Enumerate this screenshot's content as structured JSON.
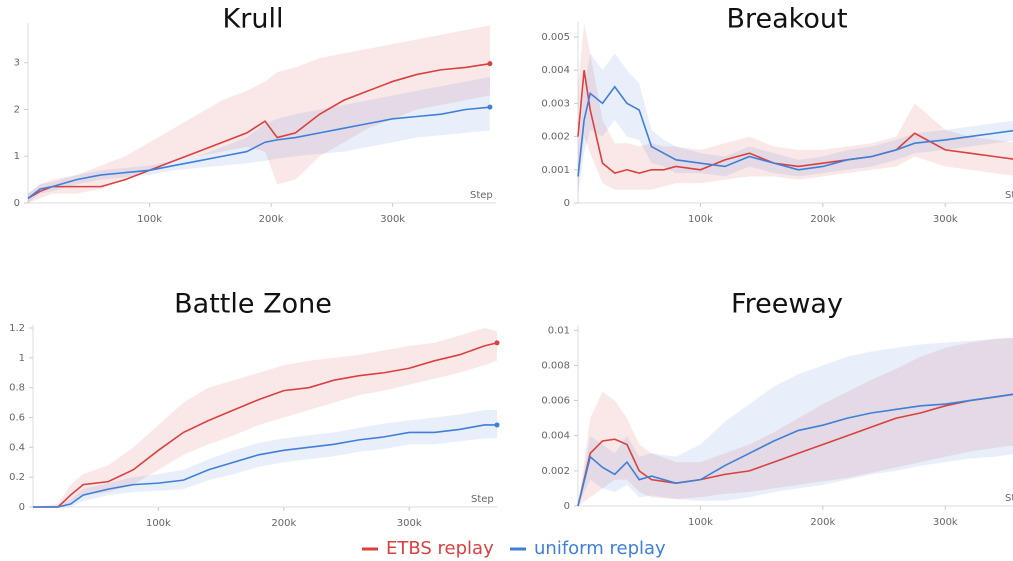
{
  "chart_data": [
    {
      "type": "line",
      "title": "Krull",
      "xlabel": "Step",
      "x": [
        0,
        10000,
        20000,
        40000,
        60000,
        80000,
        100000,
        120000,
        140000,
        160000,
        180000,
        195000,
        205000,
        220000,
        240000,
        260000,
        280000,
        300000,
        320000,
        340000,
        360000,
        380000
      ],
      "xlim": [
        0,
        385000
      ],
      "xticks": [
        {
          "value": 100000,
          "label": "100k"
        },
        {
          "value": 200000,
          "label": "200k"
        },
        {
          "value": 300000,
          "label": "300k"
        }
      ],
      "ylim": [
        0,
        3.85
      ],
      "yticks": [
        0,
        1,
        2,
        3
      ],
      "series": [
        {
          "name": "ETBS replay",
          "color": "#d9413f",
          "values": [
            0.1,
            0.25,
            0.35,
            0.35,
            0.35,
            0.5,
            0.7,
            0.9,
            1.1,
            1.3,
            1.5,
            1.75,
            1.4,
            1.5,
            1.9,
            2.2,
            2.4,
            2.6,
            2.75,
            2.85,
            2.9,
            2.98
          ],
          "upper": [
            0.2,
            0.4,
            0.5,
            0.6,
            0.8,
            1.0,
            1.3,
            1.6,
            1.9,
            2.2,
            2.4,
            2.6,
            2.8,
            2.9,
            3.1,
            3.2,
            3.3,
            3.4,
            3.5,
            3.6,
            3.7,
            3.8
          ],
          "lower": [
            0,
            0.1,
            0.2,
            0.2,
            0.3,
            0.5,
            0.7,
            0.9,
            1.0,
            1.1,
            1.2,
            1.1,
            0.4,
            0.5,
            1.0,
            1.3,
            1.6,
            1.8,
            2.0,
            2.1,
            2.2,
            2.3
          ]
        },
        {
          "name": "uniform replay",
          "color": "#3f7fd9",
          "values": [
            0.1,
            0.3,
            0.35,
            0.5,
            0.6,
            0.65,
            0.7,
            0.8,
            0.9,
            1.0,
            1.1,
            1.3,
            1.35,
            1.4,
            1.5,
            1.6,
            1.7,
            1.8,
            1.85,
            1.9,
            2.0,
            2.05
          ],
          "upper": [
            0.2,
            0.4,
            0.45,
            0.6,
            0.7,
            0.75,
            0.8,
            0.9,
            1.0,
            1.2,
            1.4,
            1.7,
            1.8,
            1.9,
            2.0,
            2.1,
            2.2,
            2.3,
            2.4,
            2.5,
            2.6,
            2.7
          ],
          "lower": [
            0,
            0.2,
            0.25,
            0.4,
            0.5,
            0.55,
            0.6,
            0.7,
            0.75,
            0.8,
            0.85,
            0.9,
            0.95,
            1.0,
            1.05,
            1.1,
            1.2,
            1.3,
            1.4,
            1.45,
            1.5,
            1.55
          ]
        }
      ]
    },
    {
      "type": "line",
      "title": "Breakout",
      "xlabel": "Step",
      "x": [
        0,
        5000,
        10000,
        20000,
        30000,
        40000,
        50000,
        60000,
        70000,
        80000,
        100000,
        120000,
        140000,
        160000,
        180000,
        200000,
        220000,
        240000,
        260000,
        275000,
        300000,
        320000,
        340000,
        360000,
        370000
      ],
      "xlim": [
        0,
        370000
      ],
      "xticks": [
        {
          "value": 100000,
          "label": "100k"
        },
        {
          "value": 200000,
          "label": "200k"
        },
        {
          "value": 300000,
          "label": "300k"
        }
      ],
      "ylim": [
        0,
        0.00545
      ],
      "yticks": [
        0,
        0.001,
        0.002,
        0.003,
        0.004,
        0.005
      ],
      "series": [
        {
          "name": "ETBS replay",
          "color": "#d9413f",
          "values": [
            0.002,
            0.004,
            0.0028,
            0.0012,
            0.0009,
            0.001,
            0.0009,
            0.001,
            0.001,
            0.0011,
            0.001,
            0.0013,
            0.0015,
            0.0012,
            0.0011,
            0.0012,
            0.0013,
            0.0014,
            0.0016,
            0.0021,
            0.0016,
            0.0015,
            0.0014,
            0.0013,
            0.0013
          ],
          "upper": [
            0.0035,
            0.0054,
            0.0045,
            0.0025,
            0.0018,
            0.0018,
            0.0017,
            0.0018,
            0.0017,
            0.0017,
            0.0016,
            0.0018,
            0.002,
            0.0017,
            0.0016,
            0.0016,
            0.0017,
            0.0018,
            0.002,
            0.003,
            0.0022,
            0.002,
            0.0019,
            0.0018,
            0.0018
          ],
          "lower": [
            0.0005,
            0.002,
            0.0015,
            0.0006,
            0.0004,
            0.0004,
            0.0004,
            0.0004,
            0.0005,
            0.0006,
            0.0006,
            0.0007,
            0.0008,
            0.0008,
            0.0007,
            0.0008,
            0.0009,
            0.001,
            0.0011,
            0.0014,
            0.0011,
            0.001,
            0.0009,
            0.0008,
            0.0008
          ]
        },
        {
          "name": "uniform replay",
          "color": "#3f7fd9",
          "values": [
            0.0008,
            0.0025,
            0.0033,
            0.003,
            0.0035,
            0.003,
            0.0028,
            0.0017,
            0.0015,
            0.0013,
            0.0012,
            0.0011,
            0.0014,
            0.0012,
            0.001,
            0.0011,
            0.0013,
            0.0014,
            0.0016,
            0.0018,
            0.0019,
            0.002,
            0.0021,
            0.0022,
            0.0023
          ],
          "upper": [
            0.0015,
            0.0035,
            0.0045,
            0.004,
            0.0045,
            0.004,
            0.0036,
            0.0022,
            0.0019,
            0.0017,
            0.0015,
            0.0014,
            0.0017,
            0.0015,
            0.0013,
            0.0014,
            0.0016,
            0.0017,
            0.0019,
            0.0021,
            0.0022,
            0.0023,
            0.0024,
            0.0025,
            0.0026
          ],
          "lower": [
            0.0002,
            0.0015,
            0.0022,
            0.002,
            0.0025,
            0.002,
            0.0019,
            0.0012,
            0.0011,
            0.0009,
            0.0009,
            0.0008,
            0.0011,
            0.0009,
            0.0008,
            0.0009,
            0.001,
            0.0011,
            0.0013,
            0.0015,
            0.0016,
            0.0017,
            0.0018,
            0.0019,
            0.002
          ]
        }
      ]
    },
    {
      "type": "line",
      "title": "Battle Zone",
      "xlabel": "Step",
      "x": [
        0,
        20000,
        30000,
        40000,
        60000,
        80000,
        100000,
        120000,
        140000,
        160000,
        180000,
        200000,
        220000,
        240000,
        260000,
        280000,
        300000,
        320000,
        340000,
        360000,
        370000
      ],
      "xlim": [
        0,
        370000
      ],
      "xticks": [
        {
          "value": 100000,
          "label": "100k"
        },
        {
          "value": 200000,
          "label": "200k"
        },
        {
          "value": 300000,
          "label": "300k"
        }
      ],
      "ylim": [
        0,
        1.22
      ],
      "yticks": [
        0,
        0.2,
        0.4,
        0.6,
        0.8,
        1,
        1.2
      ],
      "series": [
        {
          "name": "ETBS replay",
          "color": "#d9413f",
          "values": [
            0,
            0,
            0.08,
            0.15,
            0.17,
            0.25,
            0.38,
            0.5,
            0.58,
            0.65,
            0.72,
            0.78,
            0.8,
            0.85,
            0.88,
            0.9,
            0.93,
            0.98,
            1.02,
            1.08,
            1.1
          ],
          "upper": [
            0,
            0.02,
            0.15,
            0.22,
            0.28,
            0.4,
            0.55,
            0.7,
            0.8,
            0.85,
            0.9,
            0.95,
            0.98,
            1.0,
            1.02,
            1.05,
            1.08,
            1.1,
            1.15,
            1.2,
            1.18
          ],
          "lower": [
            0,
            0,
            0.03,
            0.08,
            0.1,
            0.15,
            0.25,
            0.35,
            0.42,
            0.48,
            0.55,
            0.6,
            0.65,
            0.7,
            0.75,
            0.78,
            0.82,
            0.86,
            0.9,
            0.95,
            0.98
          ]
        },
        {
          "name": "uniform replay",
          "color": "#3f7fd9",
          "values": [
            0,
            0,
            0.02,
            0.08,
            0.12,
            0.15,
            0.16,
            0.18,
            0.25,
            0.3,
            0.35,
            0.38,
            0.4,
            0.42,
            0.45,
            0.47,
            0.5,
            0.5,
            0.52,
            0.55,
            0.55
          ],
          "upper": [
            0,
            0.01,
            0.05,
            0.12,
            0.16,
            0.2,
            0.22,
            0.25,
            0.32,
            0.38,
            0.43,
            0.46,
            0.48,
            0.5,
            0.53,
            0.56,
            0.58,
            0.6,
            0.62,
            0.65,
            0.65
          ],
          "lower": [
            0,
            0,
            0,
            0.04,
            0.08,
            0.1,
            0.11,
            0.12,
            0.18,
            0.22,
            0.27,
            0.3,
            0.32,
            0.34,
            0.37,
            0.39,
            0.42,
            0.42,
            0.44,
            0.46,
            0.46
          ]
        }
      ]
    },
    {
      "type": "line",
      "title": "Freeway",
      "xlabel": "Step",
      "x": [
        0,
        10000,
        20000,
        30000,
        40000,
        50000,
        60000,
        80000,
        100000,
        120000,
        140000,
        160000,
        180000,
        200000,
        220000,
        240000,
        260000,
        280000,
        300000,
        320000,
        340000,
        360000,
        370000
      ],
      "xlim": [
        0,
        370000
      ],
      "xticks": [
        {
          "value": 100000,
          "label": "100k"
        },
        {
          "value": 200000,
          "label": "200k"
        },
        {
          "value": 300000,
          "label": "300k"
        }
      ],
      "ylim": [
        0,
        0.0103
      ],
      "yticks": [
        0,
        0.002,
        0.004,
        0.006,
        0.008,
        0.01
      ],
      "series": [
        {
          "name": "ETBS replay",
          "color": "#d9413f",
          "values": [
            0,
            0.003,
            0.0037,
            0.0038,
            0.0035,
            0.002,
            0.0015,
            0.0013,
            0.0015,
            0.0018,
            0.002,
            0.0025,
            0.003,
            0.0035,
            0.004,
            0.0045,
            0.005,
            0.0053,
            0.0057,
            0.006,
            0.0062,
            0.0064,
            0.0066
          ],
          "upper": [
            0,
            0.005,
            0.0065,
            0.006,
            0.005,
            0.0035,
            0.003,
            0.0025,
            0.0025,
            0.003,
            0.0035,
            0.0042,
            0.005,
            0.0058,
            0.0065,
            0.0072,
            0.0078,
            0.0085,
            0.009,
            0.0093,
            0.0095,
            0.0096,
            0.0097
          ],
          "lower": [
            0,
            0.0005,
            0.001,
            0.0015,
            0.0015,
            0.0008,
            0.0005,
            0.0004,
            0.0005,
            0.0007,
            0.0008,
            0.001,
            0.0012,
            0.0014,
            0.0016,
            0.0019,
            0.0022,
            0.0025,
            0.0028,
            0.0031,
            0.0033,
            0.0035,
            0.0037
          ]
        },
        {
          "name": "uniform replay",
          "color": "#3f7fd9",
          "values": [
            0,
            0.0028,
            0.0022,
            0.0018,
            0.0025,
            0.0015,
            0.0017,
            0.0013,
            0.0015,
            0.0023,
            0.003,
            0.0037,
            0.0043,
            0.0046,
            0.005,
            0.0053,
            0.0055,
            0.0057,
            0.0058,
            0.006,
            0.0062,
            0.0064,
            0.0067
          ],
          "upper": [
            0,
            0.004,
            0.0035,
            0.003,
            0.004,
            0.0028,
            0.003,
            0.0028,
            0.0035,
            0.0048,
            0.0058,
            0.0068,
            0.0075,
            0.008,
            0.0085,
            0.0088,
            0.009,
            0.0092,
            0.0093,
            0.0094,
            0.0095,
            0.0096,
            0.0097
          ],
          "lower": [
            0,
            0.0015,
            0.001,
            0.0008,
            0.0012,
            0.0005,
            0.0006,
            0.0004,
            0.0003,
            0.0003,
            0.0005,
            0.0008,
            0.001,
            0.0012,
            0.0015,
            0.0018,
            0.002,
            0.0023,
            0.0025,
            0.0027,
            0.0028,
            0.003,
            0.0032
          ]
        }
      ]
    }
  ]
}
